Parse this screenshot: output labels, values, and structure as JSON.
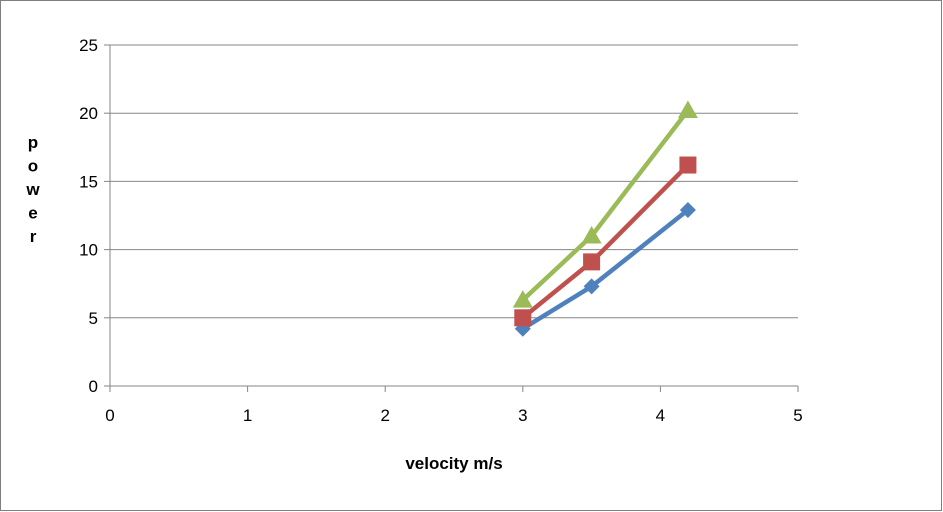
{
  "chart_data": {
    "type": "line",
    "title": "",
    "xlabel": "velocity m/s",
    "ylabel": "power",
    "xlim": [
      0,
      5
    ],
    "ylim": [
      0,
      25
    ],
    "x_ticks": [
      0,
      1,
      2,
      3,
      4,
      5
    ],
    "y_ticks": [
      0,
      5,
      10,
      15,
      20,
      25
    ],
    "grid": "horizontal",
    "legend": "none",
    "series": [
      {
        "color": "#4f81bd",
        "marker": "diamond",
        "x": [
          3,
          3.5,
          4.2
        ],
        "y": [
          4.2,
          7.3,
          12.9
        ]
      },
      {
        "color": "#c0504d",
        "marker": "square",
        "x": [
          3,
          3.5,
          4.2
        ],
        "y": [
          5.0,
          9.1,
          16.2
        ]
      },
      {
        "color": "#9bbb59",
        "marker": "triangle",
        "x": [
          3,
          3.5,
          4.2
        ],
        "y": [
          6.3,
          11.0,
          20.2
        ]
      }
    ]
  }
}
